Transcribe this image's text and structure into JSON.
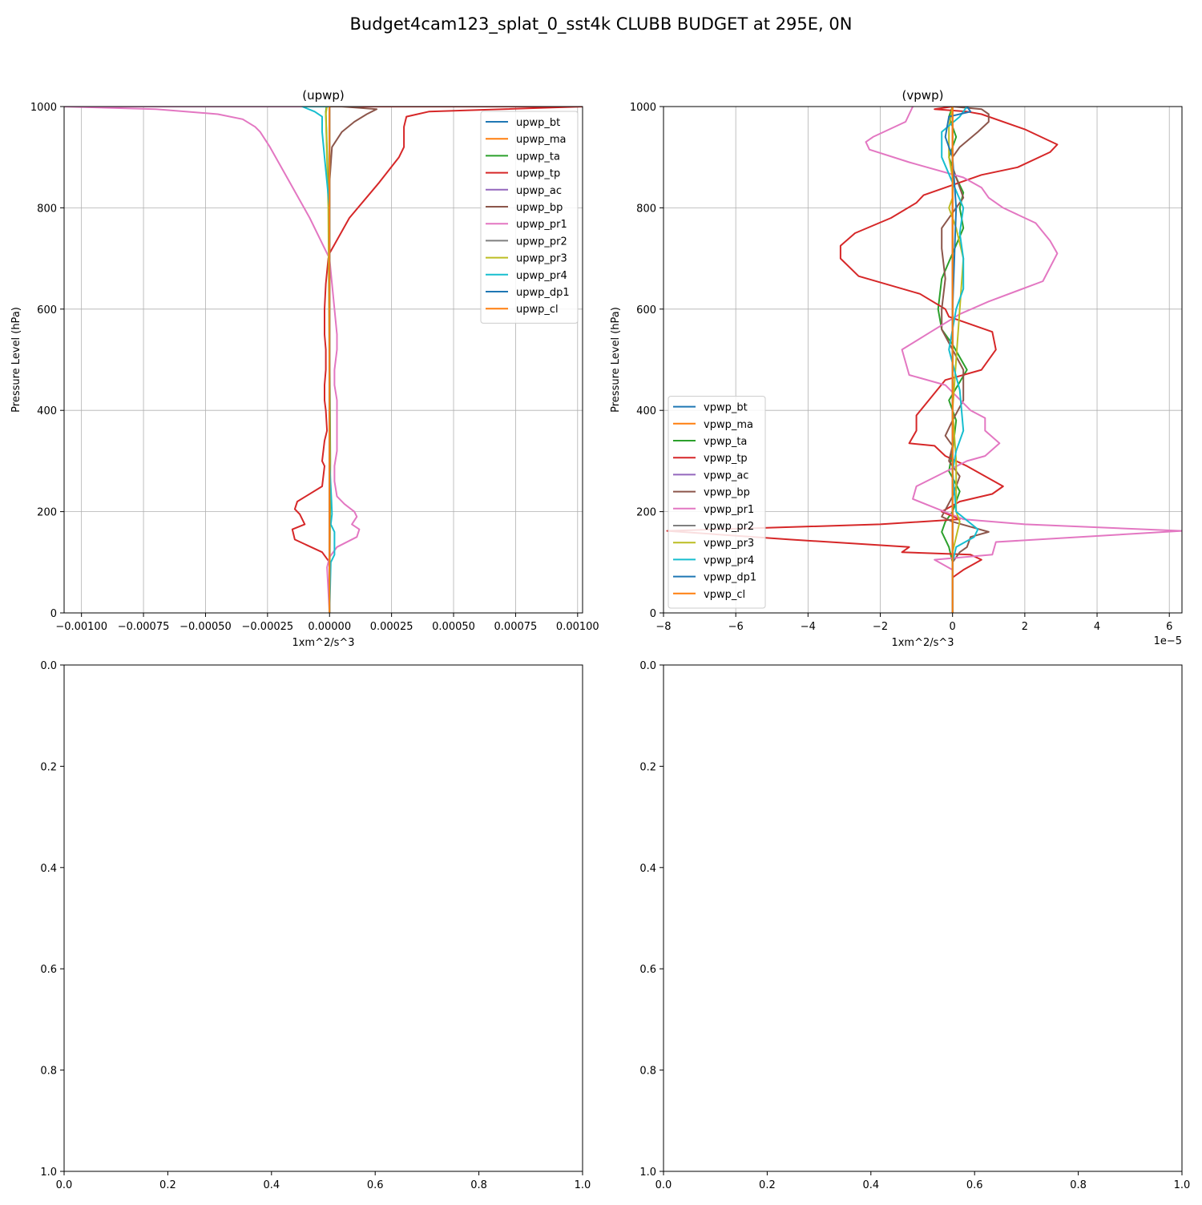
{
  "figure_title": "Budget4cam123_splat_0_sst4k CLUBB BUDGET at 295E, 0N",
  "colors": {
    "bt": "#1f77b4",
    "ma": "#ff7f0e",
    "ta": "#2ca02c",
    "tp": "#d62728",
    "ac": "#9467bd",
    "bp": "#8c564b",
    "pr1": "#e377c2",
    "pr2": "#7f7f7f",
    "pr3": "#bcbd22",
    "pr4": "#17becf",
    "dp1": "#1f77b4",
    "cl": "#ff7f0e"
  },
  "chart_data": [
    {
      "type": "line",
      "title": "(upwp)",
      "xlabel": "1xm^2/s^3",
      "ylabel": "Pressure Level (hPa)",
      "xlim": [
        -0.00107,
        0.00102
      ],
      "ylim": [
        1000,
        0
      ],
      "x_ticks": [
        -0.001,
        -0.00075,
        -0.0005,
        -0.00025,
        0,
        0.00025,
        0.0005,
        0.00075,
        0.001
      ],
      "x_tick_labels": [
        "−0.00100",
        "−0.00075",
        "−0.00050",
        "−0.00025",
        "0.00000",
        "0.00025",
        "0.00050",
        "0.00075",
        "0.00100"
      ],
      "y_ticks": [
        0,
        200,
        400,
        600,
        800,
        1000
      ],
      "y_tick_labels": [
        "0",
        "200",
        "400",
        "600",
        "800",
        "1000"
      ],
      "grid": true,
      "legend_position": "top-right",
      "series": [
        {
          "name": "upwp_bt",
          "key": "bt",
          "x": [
            0,
            0,
            0,
            0
          ],
          "y": [
            0,
            500,
            900,
            1000
          ]
        },
        {
          "name": "upwp_ma",
          "key": "ma",
          "x": [
            0,
            0,
            0,
            0
          ],
          "y": [
            0,
            500,
            900,
            1000
          ]
        },
        {
          "name": "upwp_ta",
          "key": "ta",
          "x": [
            0,
            3e-06,
            -3e-06,
            -1.5e-05,
            -1.2e-05,
            0
          ],
          "y": [
            0,
            300,
            800,
            990,
            1000,
            1000
          ]
        },
        {
          "name": "upwp_tp",
          "key": "tp",
          "x": [
            0,
            0,
            -3e-05,
            -0.00014,
            -0.00015,
            -0.0001,
            -0.00012,
            -0.00014,
            -0.00013,
            -3e-05,
            -2e-05,
            -3e-05,
            -2e-05,
            -1e-05,
            -1.5e-05,
            -2e-05,
            -2e-05,
            -1.5e-05,
            -1.5e-05,
            -2e-05,
            -2e-05,
            -1.5e-05,
            -5e-06,
            0,
            8e-05,
            0.0002,
            0.00028,
            0.0003,
            0.0003,
            0.00031,
            0.0004,
            0.0007,
            0.00102,
            0
          ],
          "y": [
            0,
            100,
            120,
            145,
            165,
            175,
            195,
            205,
            220,
            250,
            290,
            300,
            340,
            360,
            400,
            420,
            450,
            480,
            520,
            550,
            600,
            650,
            700,
            710,
            780,
            850,
            900,
            920,
            960,
            980,
            990,
            995,
            1000,
            1000
          ]
        },
        {
          "name": "upwp_ac",
          "key": "ac",
          "x": [
            0,
            0,
            0,
            0
          ],
          "y": [
            0,
            500,
            900,
            1000
          ]
        },
        {
          "name": "upwp_bp",
          "key": "bp",
          "x": [
            0,
            0,
            1e-05,
            5e-05,
            0.0001,
            0.00015,
            0.00019,
            5e-05,
            0
          ],
          "y": [
            0,
            850,
            920,
            950,
            970,
            985,
            995,
            1000,
            1000
          ]
        },
        {
          "name": "upwp_pr1",
          "key": "pr1",
          "x": [
            0,
            -1e-05,
            0,
            3e-05,
            0.00011,
            0.00012,
            9e-05,
            0.00011,
            0.0001,
            6e-05,
            3e-05,
            2e-05,
            2e-05,
            3e-05,
            3e-05,
            3e-05,
            3e-05,
            2e-05,
            2e-05,
            3e-05,
            3e-05,
            2e-05,
            1e-05,
            0,
            -8e-05,
            -0.00016,
            -0.00024,
            -0.00028,
            -0.0003,
            -0.00035,
            -0.00045,
            -0.0007,
            -0.00107,
            0
          ],
          "y": [
            0,
            90,
            110,
            130,
            150,
            165,
            175,
            190,
            200,
            215,
            230,
            260,
            290,
            320,
            360,
            400,
            420,
            450,
            480,
            520,
            550,
            600,
            650,
            700,
            780,
            850,
            920,
            950,
            960,
            975,
            985,
            995,
            1000,
            1000
          ]
        },
        {
          "name": "upwp_pr2",
          "key": "pr2",
          "x": [
            0,
            0,
            0,
            0
          ],
          "y": [
            0,
            500,
            900,
            1000
          ]
        },
        {
          "name": "upwp_pr3",
          "key": "pr3",
          "x": [
            0,
            2e-06,
            -5e-06,
            -1.5e-05,
            -1e-05,
            0
          ],
          "y": [
            0,
            300,
            800,
            985,
            1000,
            1000
          ]
        },
        {
          "name": "upwp_pr4",
          "key": "pr4",
          "x": [
            0,
            5e-06,
            2e-05,
            2e-05,
            5e-06,
            1e-05,
            8e-06,
            0,
            0,
            -1e-05,
            -2e-05,
            -3e-05,
            -3e-05,
            -6e-05,
            -0.00011,
            0
          ],
          "y": [
            0,
            100,
            115,
            160,
            175,
            195,
            220,
            300,
            800,
            850,
            900,
            950,
            980,
            990,
            1000,
            1000
          ]
        },
        {
          "name": "upwp_dp1",
          "key": "dp1",
          "x": [
            0,
            0,
            0,
            0
          ],
          "y": [
            0,
            500,
            900,
            1000
          ]
        },
        {
          "name": "upwp_cl",
          "key": "cl",
          "x": [
            0,
            0,
            0,
            0
          ],
          "y": [
            0,
            500,
            900,
            1000
          ]
        }
      ]
    },
    {
      "type": "line",
      "title": "(vpwp)",
      "xlabel": "1xm^2/s^3",
      "ylabel": "Pressure Level (hPa)",
      "offset_label": "1e−5",
      "xlim": [
        -8,
        6.35
      ],
      "ylim": [
        1000,
        0
      ],
      "x_ticks": [
        -8,
        -6,
        -4,
        -2,
        0,
        2,
        4,
        6
      ],
      "x_tick_labels": [
        "−8",
        "−6",
        "−4",
        "−2",
        "0",
        "2",
        "4",
        "6"
      ],
      "y_ticks": [
        0,
        200,
        400,
        600,
        800,
        1000
      ],
      "y_tick_labels": [
        "0",
        "200",
        "400",
        "600",
        "800",
        "1000"
      ],
      "grid": true,
      "legend_position": "lower-left",
      "series": [
        {
          "name": "vpwp_bt",
          "key": "bt",
          "x": [
            0,
            0,
            0,
            0
          ],
          "y": [
            0,
            500,
            900,
            1000
          ]
        },
        {
          "name": "vpwp_ma",
          "key": "ma",
          "x": [
            0,
            0,
            0,
            0
          ],
          "y": [
            0,
            500,
            900,
            1000
          ]
        },
        {
          "name": "vpwp_ta",
          "key": "ta",
          "x": [
            0,
            0,
            -0.1,
            -0.3,
            -0.2,
            0,
            0.2,
            -0.1,
            0,
            0.1,
            -0.1,
            0.4,
            0,
            -0.3,
            -0.4,
            -0.3,
            0.3,
            0.2,
            0.3,
            0.1,
            -0.1,
            0.1,
            -0.1,
            0
          ],
          "y": [
            0,
            100,
            130,
            160,
            180,
            200,
            240,
            280,
            320,
            380,
            420,
            480,
            530,
            560,
            600,
            660,
            760,
            800,
            830,
            860,
            900,
            940,
            980,
            1000
          ]
        },
        {
          "name": "vpwp_tp",
          "key": "tp",
          "x": [
            0,
            0,
            0.3,
            0.8,
            0.5,
            -1.4,
            -1.2,
            -4.5,
            -7.9,
            -2,
            0.2,
            -0.3,
            0.2,
            1.1,
            1.4,
            0.4,
            -0.2,
            -0.5,
            -1.2,
            -1.0,
            -1.0,
            -0.2,
            0.8,
            1.2,
            1.1,
            -0.1,
            -0.2,
            -0.9,
            -2.6,
            -3.1,
            -3.1,
            -2.7,
            -1.7,
            -1.0,
            -0.8,
            0.8,
            1.8,
            2.7,
            2.9,
            2.0,
            0.8,
            0.4,
            -0.5,
            0
          ],
          "y": [
            0,
            70,
            85,
            105,
            115,
            120,
            130,
            145,
            162,
            175,
            185,
            200,
            220,
            235,
            250,
            290,
            310,
            330,
            335,
            360,
            390,
            460,
            480,
            520,
            555,
            585,
            600,
            630,
            665,
            700,
            725,
            750,
            780,
            810,
            825,
            865,
            880,
            910,
            925,
            955,
            985,
            990,
            995,
            1000
          ]
        },
        {
          "name": "vpwp_ac",
          "key": "ac",
          "x": [
            0,
            0,
            0,
            0
          ],
          "y": [
            0,
            500,
            900,
            1000
          ]
        },
        {
          "name": "vpwp_bp",
          "key": "bp",
          "x": [
            0,
            0,
            0.2,
            0.4,
            0.5,
            1.0,
            0,
            -0.3,
            0,
            0.2,
            -0.1,
            0,
            -0.2,
            0,
            0.3,
            0.3,
            0,
            -0.3,
            -0.3,
            -0.2,
            -0.3,
            -0.3,
            0.1,
            0.3,
            0.2,
            0,
            0,
            0.2,
            0.7,
            1.0,
            1.0,
            0.8,
            0
          ],
          "y": [
            0,
            100,
            120,
            130,
            150,
            160,
            180,
            190,
            230,
            270,
            300,
            330,
            350,
            380,
            420,
            480,
            520,
            560,
            600,
            660,
            720,
            760,
            800,
            820,
            840,
            880,
            900,
            920,
            950,
            970,
            985,
            995,
            1000
          ]
        },
        {
          "name": "vpwp_pr1",
          "key": "pr1",
          "x": [
            0,
            0,
            -0.5,
            1.1,
            1.2,
            6.35,
            2.0,
            0.3,
            -1.1,
            -1.0,
            0.4,
            0.9,
            1.3,
            0.9,
            0.9,
            0.5,
            -0.2,
            -1.2,
            -1.4,
            -0.6,
            0.2,
            1.0,
            2.5,
            2.9,
            2.7,
            2.3,
            1.4,
            1.0,
            0.8,
            0.3,
            -1.2,
            -2.3,
            -2.4,
            -2.2,
            -1.3,
            -1.1
          ],
          "y": [
            0,
            85,
            105,
            115,
            140,
            162,
            175,
            185,
            225,
            250,
            300,
            310,
            335,
            360,
            385,
            400,
            450,
            470,
            520,
            555,
            590,
            615,
            655,
            710,
            735,
            770,
            800,
            820,
            840,
            860,
            890,
            915,
            930,
            940,
            970,
            1000
          ]
        },
        {
          "name": "vpwp_pr2",
          "key": "pr2",
          "x": [
            0,
            0,
            0,
            0
          ],
          "y": [
            0,
            500,
            900,
            1000
          ]
        },
        {
          "name": "vpwp_pr3",
          "key": "pr3",
          "x": [
            0,
            0,
            0.2,
            0.1,
            0.1,
            0,
            0.2,
            0.3,
            0.1,
            -0.1,
            0,
            0,
            -0.1,
            -0.1,
            0
          ],
          "y": [
            0,
            120,
            180,
            200,
            300,
            400,
            600,
            700,
            760,
            800,
            820,
            860,
            900,
            960,
            1000
          ]
        },
        {
          "name": "vpwp_pr4",
          "key": "pr4",
          "x": [
            0,
            0,
            0.1,
            0.6,
            0.7,
            0.1,
            0,
            0.1,
            0.3,
            0.2,
            -0.1,
            0.1,
            0.3,
            0.3,
            0.2,
            0.3,
            0,
            -0.3,
            -0.3,
            0.2,
            0.4
          ],
          "y": [
            0,
            100,
            130,
            150,
            165,
            200,
            280,
            320,
            360,
            440,
            520,
            600,
            640,
            700,
            750,
            800,
            850,
            900,
            950,
            980,
            1000
          ]
        },
        {
          "name": "vpwp_dp1",
          "key": "dp1",
          "x": [
            0,
            0,
            0.1,
            0,
            -0.2,
            -0.1,
            0.5,
            0.4
          ],
          "y": [
            0,
            600,
            800,
            900,
            940,
            980,
            990,
            1000
          ]
        },
        {
          "name": "vpwp_cl",
          "key": "cl",
          "x": [
            0,
            0,
            0,
            0
          ],
          "y": [
            0,
            500,
            900,
            1000
          ]
        }
      ]
    },
    {
      "type": "line",
      "title": "",
      "xlim": [
        0,
        1
      ],
      "ylim": [
        0,
        1
      ],
      "x_tick_labels": [
        "0.0",
        "0.2",
        "0.4",
        "0.6",
        "0.8",
        "1.0"
      ],
      "y_tick_labels": [
        "0.0",
        "0.2",
        "0.4",
        "0.6",
        "0.8",
        "1.0"
      ],
      "grid": false,
      "series": []
    },
    {
      "type": "line",
      "title": "",
      "xlim": [
        0,
        1
      ],
      "ylim": [
        0,
        1
      ],
      "x_tick_labels": [
        "0.0",
        "0.2",
        "0.4",
        "0.6",
        "0.8",
        "1.0"
      ],
      "y_tick_labels": [
        "0.0",
        "0.2",
        "0.4",
        "0.6",
        "0.8",
        "1.0"
      ],
      "grid": false,
      "series": []
    }
  ]
}
